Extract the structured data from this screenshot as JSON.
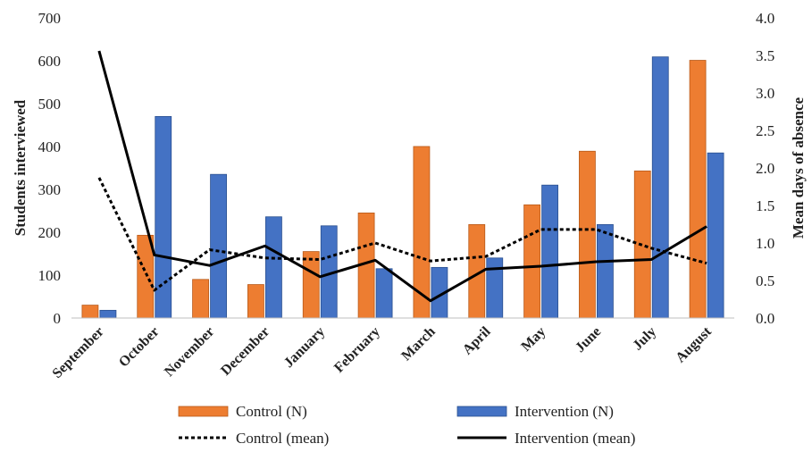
{
  "chart_data": {
    "type": "bar",
    "categories": [
      "September",
      "October",
      "November",
      "December",
      "January",
      "February",
      "March",
      "April",
      "May",
      "June",
      "July",
      "August"
    ],
    "series": [
      {
        "name": "Control (N)",
        "type": "bar",
        "axis": "left",
        "color": "#ED7D31",
        "values": [
          30,
          193,
          90,
          78,
          155,
          245,
          400,
          218,
          264,
          389,
          343,
          601
        ]
      },
      {
        "name": "Intervention (N)",
        "type": "bar",
        "axis": "left",
        "color": "#4472C4",
        "values": [
          18,
          470,
          335,
          236,
          215,
          115,
          118,
          140,
          310,
          218,
          609,
          385
        ]
      },
      {
        "name": "Control (mean)",
        "type": "line",
        "style": "dotted",
        "axis": "right",
        "color": "#000000",
        "values": [
          1.87,
          0.37,
          0.91,
          0.8,
          0.78,
          1.0,
          0.76,
          0.82,
          1.18,
          1.18,
          0.93,
          0.73
        ]
      },
      {
        "name": "Intervention (mean)",
        "type": "line",
        "style": "solid",
        "axis": "right",
        "color": "#000000",
        "values": [
          3.56,
          0.84,
          0.7,
          0.96,
          0.55,
          0.77,
          0.23,
          0.65,
          0.69,
          0.75,
          0.78,
          1.22
        ]
      }
    ],
    "ylabel": "Students interviewed",
    "y2label": "Mean days of absence",
    "ylim": [
      0,
      700
    ],
    "y2lim": [
      0,
      4.0
    ],
    "yticks": [
      "0",
      "100",
      "200",
      "300",
      "400",
      "500",
      "600",
      "700"
    ],
    "y2ticks": [
      "0.0",
      "0.5",
      "1.0",
      "1.5",
      "2.0",
      "2.5",
      "3.0",
      "3.5",
      "4.0"
    ],
    "grid": false,
    "legend_position": "bottom"
  }
}
